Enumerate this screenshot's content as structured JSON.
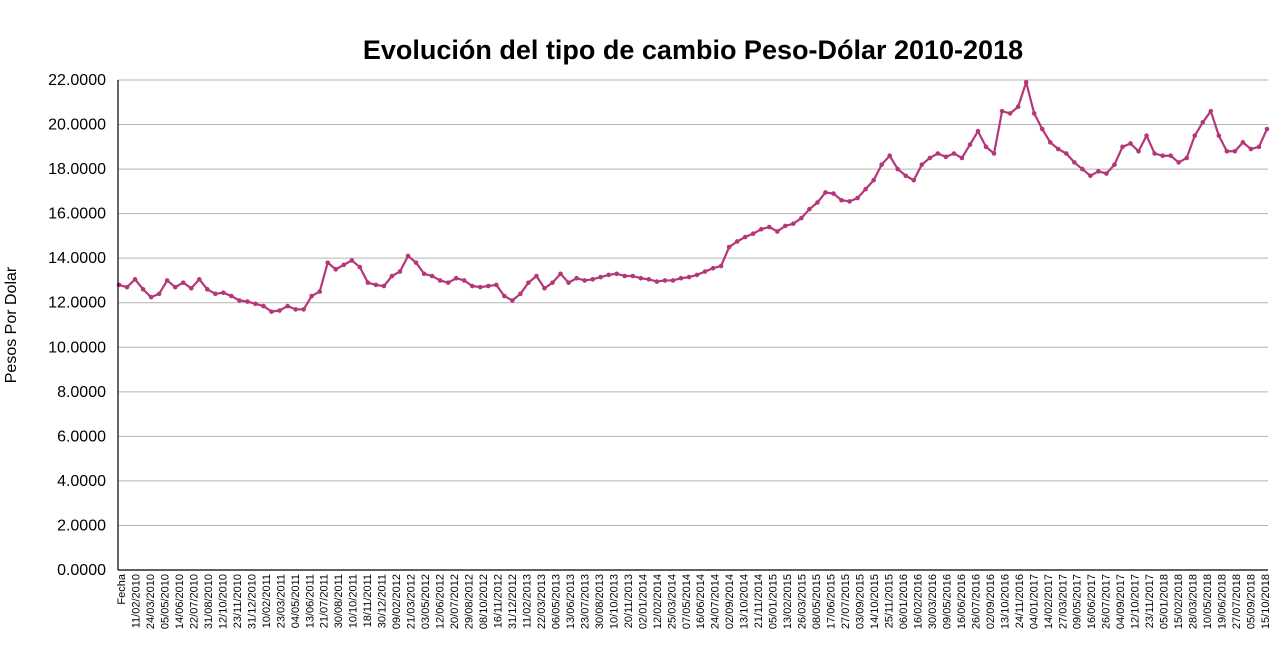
{
  "chart_data": {
    "type": "line",
    "title": "Evolución del tipo de cambio Peso-Dólar 2010-2018",
    "xlabel": "",
    "ylabel": "Pesos Por Dolar",
    "ylim": [
      0,
      22
    ],
    "yticks": [
      "0.0000",
      "2.0000",
      "4.0000",
      "6.0000",
      "8.0000",
      "10.0000",
      "12.0000",
      "14.0000",
      "16.0000",
      "18.0000",
      "20.0000",
      "22.0000"
    ],
    "grid": true,
    "series_color": "#b5377a",
    "x_tick_labels": [
      "Fecha",
      "11/02/2010",
      "24/03/2010",
      "05/05/2010",
      "14/06/2010",
      "22/07/2010",
      "31/08/2010",
      "12/10/2010",
      "23/11/2010",
      "31/12/2010",
      "10/02/2011",
      "23/03/2011",
      "04/05/2011",
      "13/06/2011",
      "21/07/2011",
      "30/08/2011",
      "10/10/2011",
      "18/11/2011",
      "30/12/2011",
      "09/02/2012",
      "21/03/2012",
      "03/05/2012",
      "12/06/2012",
      "20/07/2012",
      "29/08/2012",
      "08/10/2012",
      "16/11/2012",
      "31/12/2012",
      "11/02/2013",
      "22/03/2013",
      "06/05/2013",
      "13/06/2013",
      "23/07/2013",
      "30/08/2013",
      "10/10/2013",
      "20/11/2013",
      "02/01/2014",
      "12/02/2014",
      "25/03/2014",
      "07/05/2014",
      "16/06/2014",
      "24/07/2014",
      "02/09/2014",
      "13/10/2014",
      "21/11/2014",
      "05/01/2015",
      "13/02/2015",
      "26/03/2015",
      "08/05/2015",
      "17/06/2015",
      "27/07/2015",
      "03/09/2015",
      "14/10/2015",
      "25/11/2015",
      "06/01/2016",
      "16/02/2016",
      "30/03/2016",
      "09/05/2016",
      "16/06/2016",
      "26/07/2016",
      "02/09/2016",
      "13/10/2016",
      "24/11/2016",
      "04/01/2017",
      "14/02/2017",
      "27/03/2017",
      "09/05/2017",
      "16/06/2017",
      "26/07/2017",
      "04/09/2017",
      "12/10/2017",
      "23/11/2017",
      "05/01/2018",
      "15/02/2018",
      "28/03/2018",
      "10/05/2018",
      "19/06/2018",
      "27/07/2018",
      "05/09/2018",
      "15/10/2018"
    ],
    "series": [
      {
        "values": [
          12.8,
          12.7,
          13.05,
          12.6,
          12.25,
          12.4,
          13.0,
          12.7,
          12.9,
          12.65,
          13.05,
          12.6,
          12.4,
          12.45,
          12.3,
          12.1,
          12.05,
          11.95,
          11.85,
          11.6,
          11.65,
          11.85,
          11.7,
          11.7,
          12.3,
          12.5,
          13.8,
          13.5,
          13.7,
          13.9,
          13.6,
          12.9,
          12.8,
          12.75,
          13.2,
          13.4,
          14.1,
          13.8,
          13.3,
          13.2,
          13.0,
          12.9,
          13.1,
          13.0,
          12.75,
          12.7,
          12.75,
          12.8,
          12.3,
          12.1,
          12.4,
          12.9,
          13.2,
          12.65,
          12.9,
          13.3,
          12.9,
          13.1,
          13.0,
          13.05,
          13.15,
          13.25,
          13.3,
          13.2,
          13.2,
          13.1,
          13.05,
          12.95,
          13.0,
          13.0,
          13.1,
          13.15,
          13.25,
          13.4,
          13.55,
          13.65,
          14.5,
          14.75,
          14.95,
          15.1,
          15.3,
          15.4,
          15.2,
          15.45,
          15.55,
          15.8,
          16.2,
          16.5,
          16.95,
          16.9,
          16.6,
          16.55,
          16.7,
          17.1,
          17.5,
          18.2,
          18.6,
          18.0,
          17.7,
          17.5,
          18.2,
          18.5,
          18.7,
          18.55,
          18.7,
          18.5,
          19.1,
          19.7,
          19.0,
          18.7,
          20.6,
          20.5,
          20.8,
          21.9,
          20.5,
          19.8,
          19.2,
          18.9,
          18.7,
          18.3,
          18.0,
          17.7,
          17.9,
          17.8,
          18.2,
          19.0,
          19.15,
          18.8,
          19.5,
          18.7,
          18.6,
          18.6,
          18.3,
          18.5,
          19.5,
          20.1,
          20.6,
          19.5,
          18.8,
          18.8,
          19.2,
          18.9,
          19.0,
          19.8
        ]
      }
    ]
  }
}
